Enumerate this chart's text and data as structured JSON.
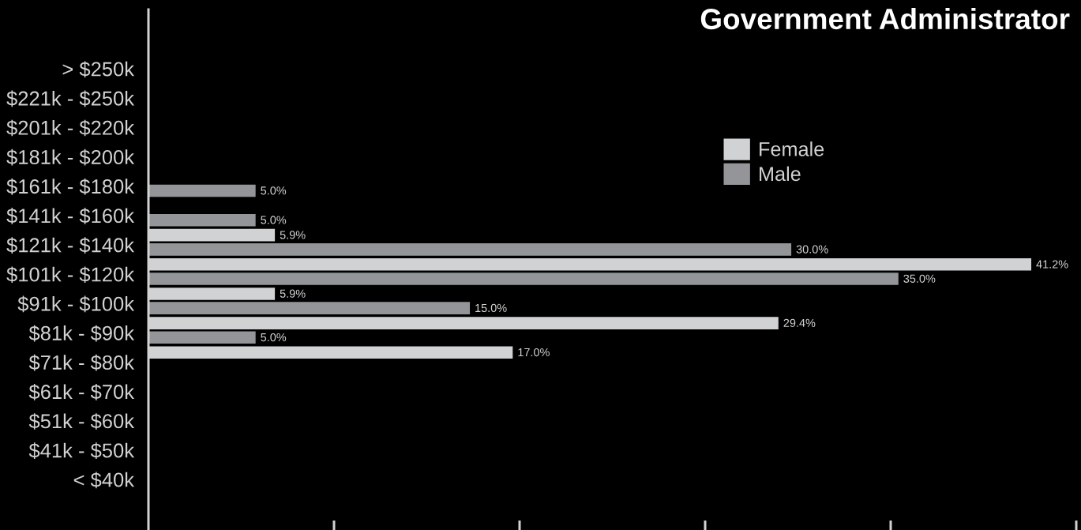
{
  "chart_data": {
    "type": "bar",
    "orientation": "horizontal",
    "title": "Government Administrator",
    "categories": [
      "> $250k",
      "$221k - $250k",
      "$201k - $220k",
      "$181k - $200k",
      "$161k - $180k",
      "$141k - $160k",
      "$121k - $140k",
      "$101k - $120k",
      "$91k - $100k",
      "$81k - $90k",
      "$71k - $80k",
      "$61k - $70k",
      "$51k - $60k",
      "$41k - $50k",
      "< $40k"
    ],
    "series": [
      {
        "name": "Female",
        "color": "#d1d2d4",
        "values": [
          null,
          null,
          null,
          null,
          null,
          null,
          5.9,
          41.2,
          5.9,
          29.4,
          17.0,
          null,
          null,
          null,
          null
        ],
        "value_labels": [
          null,
          null,
          null,
          null,
          null,
          null,
          "5.9%",
          "41.2%",
          "5.9%",
          "29.4%",
          "17.0%",
          null,
          null,
          null,
          null
        ]
      },
      {
        "name": "Male",
        "color": "#939598",
        "values": [
          null,
          null,
          null,
          null,
          5.0,
          5.0,
          30.0,
          35.0,
          15.0,
          5.0,
          null,
          null,
          null,
          null,
          null
        ],
        "value_labels": [
          null,
          null,
          null,
          null,
          "5.0%",
          "5.0%",
          "30.0%",
          "35.0%",
          "15.0%",
          "5.0%",
          null,
          null,
          null,
          null,
          null
        ]
      }
    ],
    "xlim": [
      0,
      43.3
    ],
    "tick_labels": "y",
    "legend": "top right"
  }
}
